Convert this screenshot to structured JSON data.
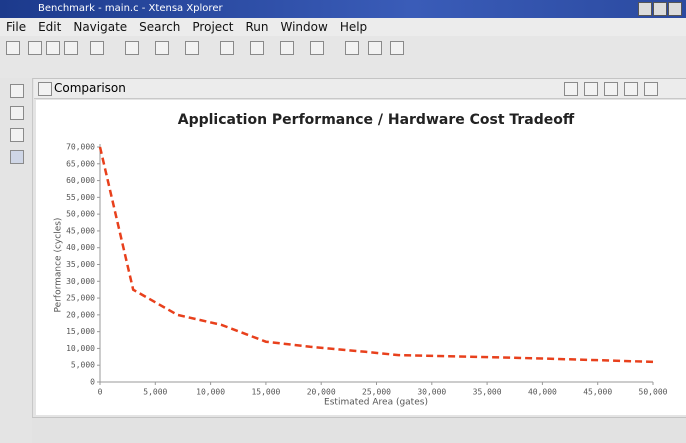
{
  "window": {
    "title": "Benchmark - main.c - Xtensa Xplorer"
  },
  "menu": [
    "File",
    "Edit",
    "Navigate",
    "Search",
    "Project",
    "Run",
    "Window",
    "Help"
  ],
  "view": {
    "tab": "Comparison"
  },
  "chart_data": {
    "type": "line",
    "title": "Application Performance / Hardware Cost Tradeoff",
    "x_label": "Estimated Area (gates)",
    "y_label": "Performance (cycles)",
    "x": [
      0,
      3000,
      7000,
      11000,
      15000,
      19000,
      24000,
      27000,
      34000,
      40000,
      45000,
      50000
    ],
    "values": [
      70000,
      27500,
      20000,
      17000,
      12000,
      10500,
      9000,
      8000,
      7500,
      7000,
      6500,
      6000
    ],
    "color": "#e8401c",
    "line_style": "dashed",
    "xlim": [
      0,
      50000
    ],
    "ylim": [
      0,
      70000
    ],
    "xticks": [
      0,
      {
        "value": 5000,
        "label": "5,000"
      },
      {
        "value": 10000,
        "label": "10,000"
      },
      {
        "value": 15000,
        "label": "15,000"
      },
      {
        "value": 20000,
        "label": "20,000"
      },
      {
        "value": 25000,
        "label": "25,000"
      },
      {
        "value": 30000,
        "label": "30,000"
      },
      {
        "value": 35000,
        "label": "35,000"
      },
      {
        "value": 40000,
        "label": "40,000"
      },
      {
        "value": 45000,
        "label": "45,000"
      },
      {
        "value": 50000,
        "label": "50,000"
      }
    ],
    "yticks": [
      0,
      {
        "value": 5000,
        "label": "5,000"
      },
      {
        "value": 10000,
        "label": "10,000"
      },
      {
        "value": 15000,
        "label": "15,000"
      },
      {
        "value": 20000,
        "label": "20,000"
      },
      {
        "value": 25000,
        "label": "25,000"
      },
      {
        "value": 30000,
        "label": "30,000"
      },
      {
        "value": 35000,
        "label": "35,000"
      },
      {
        "value": 40000,
        "label": "40,000"
      },
      {
        "value": 45000,
        "label": "45,000"
      },
      {
        "value": 50000,
        "label": "50,000"
      },
      {
        "value": 55000,
        "label": "55,000"
      },
      {
        "value": 60000,
        "label": "60,000"
      },
      {
        "value": 65000,
        "label": "65,000"
      },
      {
        "value": 70000,
        "label": "70,000"
      }
    ],
    "grid": false
  }
}
